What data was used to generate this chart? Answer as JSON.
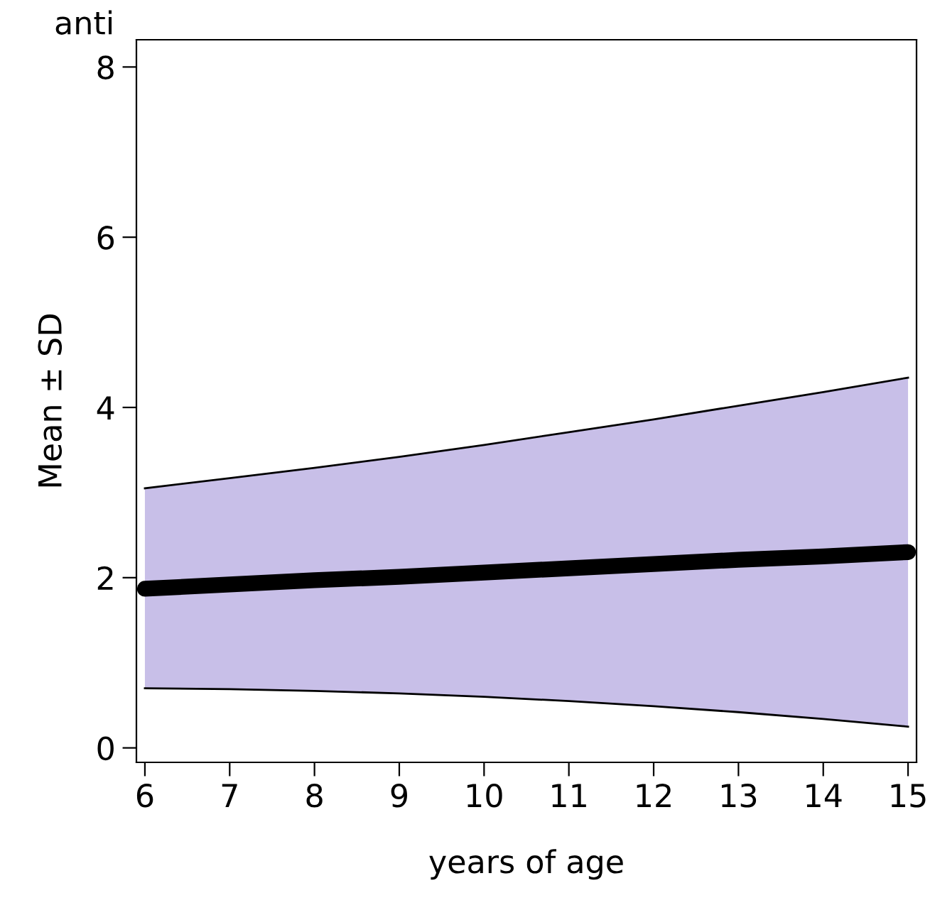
{
  "chart_data": {
    "type": "line",
    "title": "anti",
    "xlabel": "years of age",
    "ylabel": "Mean ± SD",
    "x": [
      6,
      7,
      8,
      9,
      10,
      11,
      12,
      13,
      14,
      15
    ],
    "stacked": true,
    "series": [
      {
        "type": "area",
        "color": "#ffffff",
        "values": [
          0.7,
          0.69,
          0.67,
          0.64,
          0.6,
          0.55,
          0.49,
          0.42,
          0.34,
          0.25
        ]
      },
      {
        "type": "area",
        "color": "#c8bfe8",
        "values": [
          2.35,
          2.48,
          2.62,
          2.78,
          2.96,
          3.16,
          3.37,
          3.6,
          3.84,
          4.1
        ]
      },
      {
        "color": "#000000",
        "values": [
          1.87,
          1.92,
          1.97,
          2.01,
          2.06,
          2.11,
          2.16,
          2.21,
          2.25,
          2.3
        ]
      }
    ],
    "xlim": [
      5.9,
      15.1
    ],
    "ylim": [
      -0.17,
      8.32
    ],
    "xticks": [
      6,
      7,
      8,
      9,
      10,
      11,
      12,
      13,
      14,
      15
    ],
    "yticks": [
      0,
      2,
      4,
      6,
      8
    ],
    "grid": false,
    "legend": false,
    "marker": "none",
    "line_style": "solid"
  }
}
